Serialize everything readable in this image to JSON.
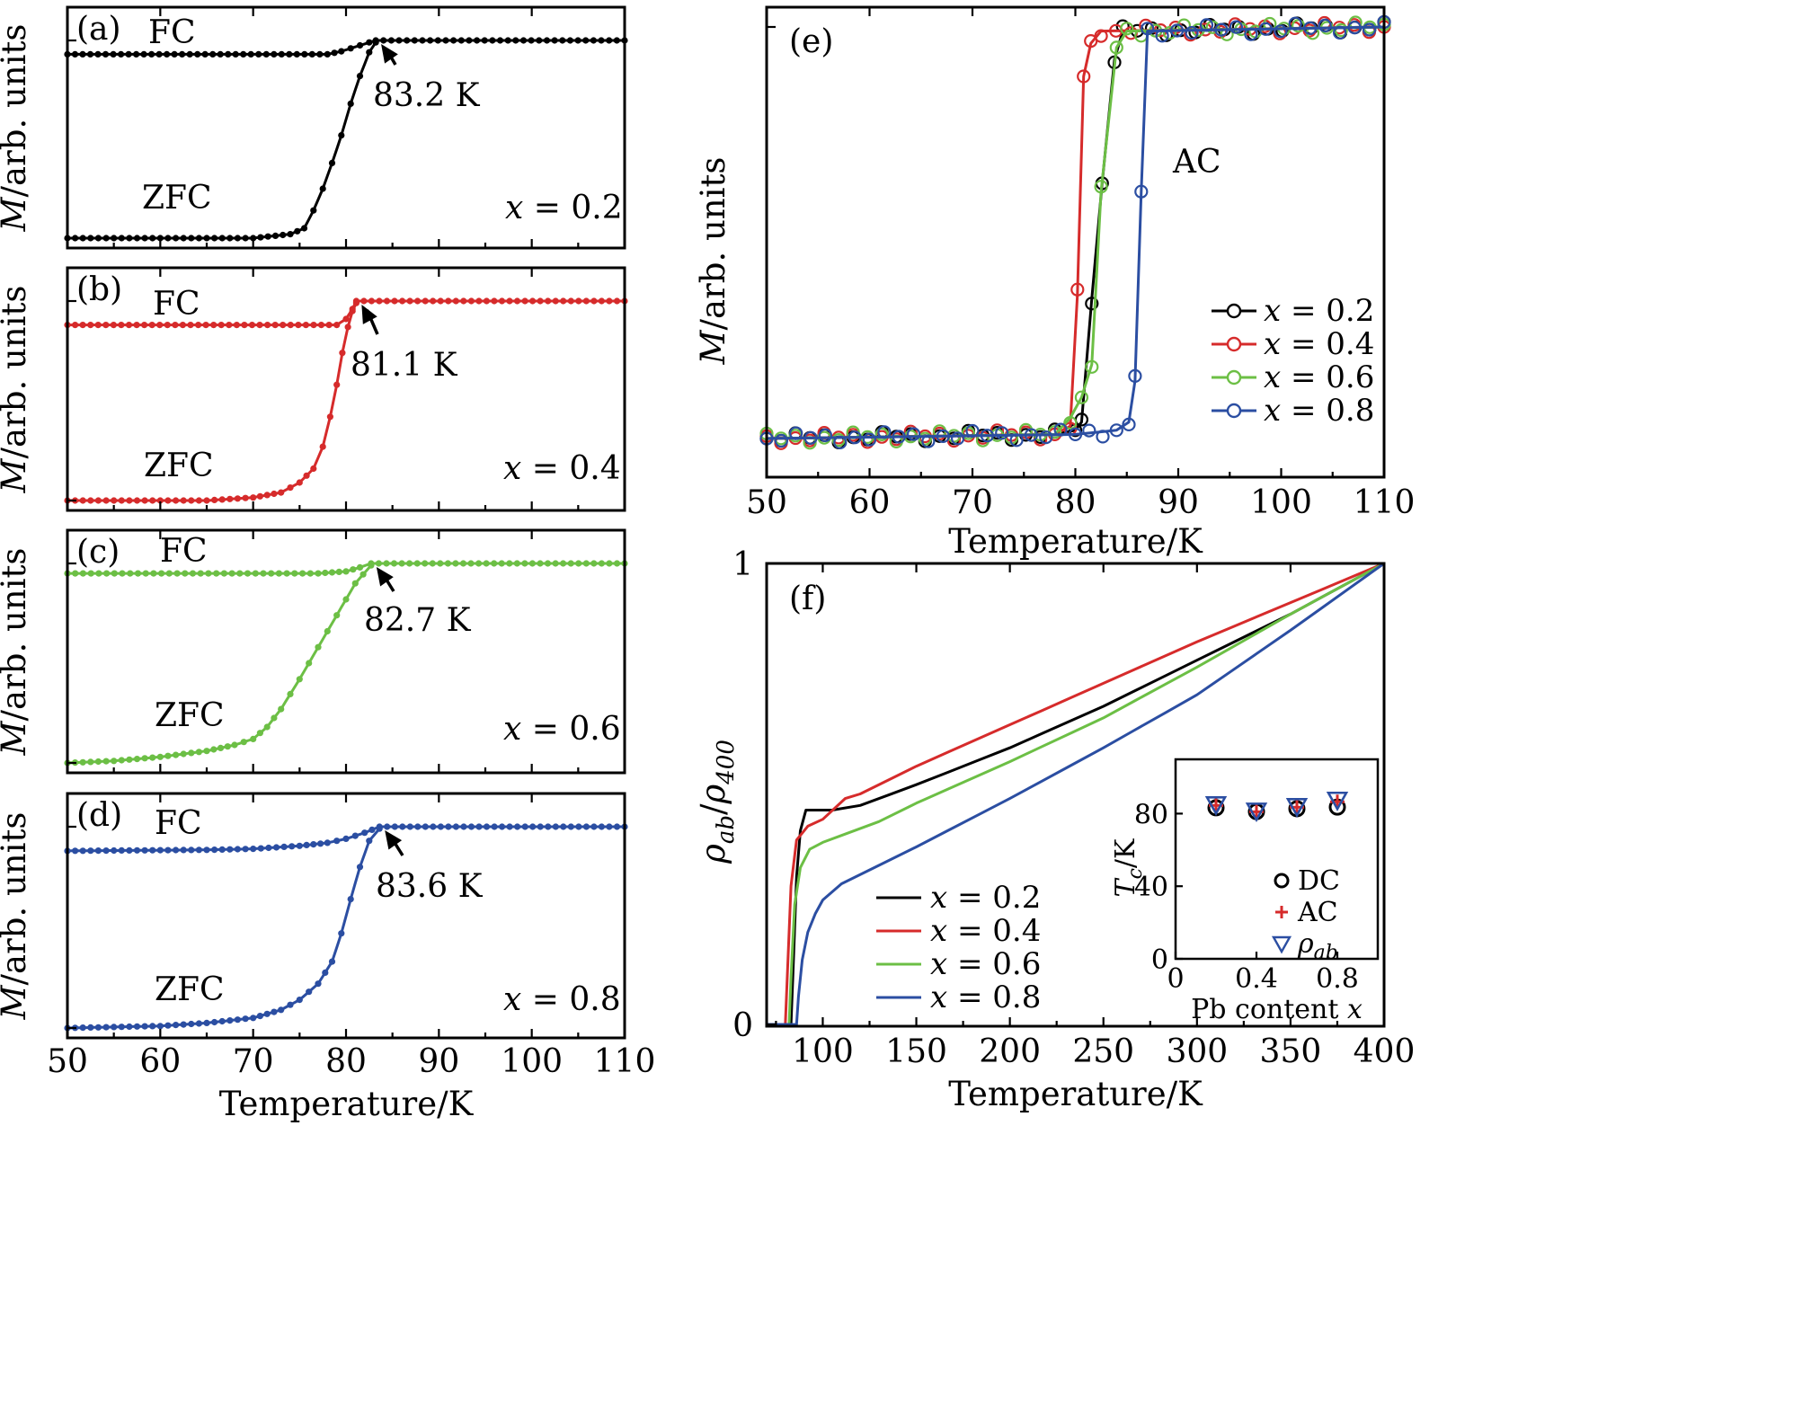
{
  "chart_data": [
    {
      "id": "a",
      "type": "line",
      "panel_label": "(a)",
      "xlim": [
        50,
        110
      ],
      "ylim": [
        0,
        1
      ],
      "xticks": [
        50,
        60,
        70,
        80,
        90,
        100,
        110
      ],
      "ylabel": "M/arb. units",
      "color": "#000000",
      "fc_label": "FC",
      "zfc_label": "ZFC",
      "composition": "x = 0.2",
      "tc_label": "83.2 K",
      "tc": 83.2,
      "fc": {
        "x": [
          50,
          78,
          79.5,
          80.5,
          81.5,
          82.5,
          83.2,
          110
        ],
        "y": [
          0.93,
          0.93,
          0.945,
          0.96,
          0.975,
          0.99,
          1.0,
          1.0
        ]
      },
      "zfc": {
        "x": [
          50,
          70,
          74,
          75.5,
          76.5,
          77.5,
          78.5,
          79.5,
          80.5,
          81.5,
          82.5,
          83.2
        ],
        "y": [
          0.0,
          0.0,
          0.02,
          0.05,
          0.14,
          0.25,
          0.38,
          0.52,
          0.68,
          0.82,
          0.94,
          0.99
        ]
      }
    },
    {
      "id": "b",
      "type": "line",
      "panel_label": "(b)",
      "xlim": [
        50,
        110
      ],
      "ylim": [
        0,
        1
      ],
      "xticks": [
        50,
        60,
        70,
        80,
        90,
        100,
        110
      ],
      "ylabel": "M/arb. units",
      "color": "#d62b2b",
      "fc_label": "FC",
      "zfc_label": "ZFC",
      "composition": "x = 0.4",
      "tc_label": "81.1 K",
      "tc": 81.1,
      "fc": {
        "x": [
          50,
          79,
          80,
          80.7,
          81.1,
          110
        ],
        "y": [
          0.88,
          0.88,
          0.91,
          0.96,
          1.0,
          1.0
        ]
      },
      "zfc": {
        "x": [
          50,
          65,
          70,
          73,
          75,
          76.5,
          77.5,
          78.3,
          79,
          79.6,
          80.2,
          80.7,
          81.1
        ],
        "y": [
          0.0,
          0.0,
          0.015,
          0.04,
          0.09,
          0.16,
          0.27,
          0.42,
          0.58,
          0.74,
          0.87,
          0.95,
          0.99
        ]
      }
    },
    {
      "id": "c",
      "type": "line",
      "panel_label": "(c)",
      "xlim": [
        50,
        110
      ],
      "ylim": [
        0,
        1
      ],
      "xticks": [
        50,
        60,
        70,
        80,
        90,
        100,
        110
      ],
      "ylabel": "M/arb. units",
      "color": "#6cbf45",
      "fc_label": "FC",
      "zfc_label": "ZFC",
      "composition": "x = 0.6",
      "tc_label": "82.7 K",
      "tc": 82.7,
      "fc": {
        "x": [
          50,
          77,
          80,
          81.5,
          82.7,
          110
        ],
        "y": [
          0.95,
          0.95,
          0.96,
          0.98,
          1.0,
          1.0
        ]
      },
      "zfc": {
        "x": [
          50,
          55,
          60,
          65,
          68,
          70,
          71.5,
          73,
          75,
          77,
          79,
          81,
          82.7
        ],
        "y": [
          0.0,
          0.01,
          0.03,
          0.06,
          0.09,
          0.12,
          0.18,
          0.27,
          0.42,
          0.58,
          0.74,
          0.9,
          0.99
        ]
      }
    },
    {
      "id": "d",
      "type": "line",
      "panel_label": "(d)",
      "xlim": [
        50,
        110
      ],
      "ylim": [
        0,
        1
      ],
      "xticks": [
        50,
        60,
        70,
        80,
        90,
        100,
        110
      ],
      "xticklabels": [
        "50",
        "60",
        "70",
        "80",
        "90",
        "100",
        "110"
      ],
      "xlabel": "Temperature/K",
      "ylabel": "M/arb. units",
      "color": "#2b4ea2",
      "fc_label": "FC",
      "zfc_label": "ZFC",
      "composition": "x = 0.8",
      "tc_label": "83.6 K",
      "tc": 83.6,
      "fc": {
        "x": [
          50,
          65,
          70,
          75,
          78,
          80,
          82,
          83.6,
          110
        ],
        "y": [
          0.88,
          0.885,
          0.89,
          0.905,
          0.92,
          0.94,
          0.97,
          1.0,
          1.0
        ]
      },
      "zfc": {
        "x": [
          50,
          60,
          65,
          70,
          73,
          75,
          77,
          78.5,
          79.5,
          80.5,
          81.5,
          82.5,
          83.6
        ],
        "y": [
          0.0,
          0.01,
          0.025,
          0.05,
          0.09,
          0.14,
          0.22,
          0.33,
          0.47,
          0.64,
          0.8,
          0.93,
          0.99
        ]
      }
    },
    {
      "id": "e",
      "type": "line",
      "panel_label": "(e)",
      "xlim": [
        50,
        110
      ],
      "ylim": [
        0,
        1
      ],
      "xticks": [
        50,
        60,
        70,
        80,
        90,
        100,
        110
      ],
      "xticklabels": [
        "50",
        "60",
        "70",
        "80",
        "90",
        "100",
        "110"
      ],
      "xlabel": "Temperature/K",
      "ylabel": "M/arb. units",
      "annotation": "AC",
      "series": [
        {
          "name": "x = 0.2",
          "color": "#000000",
          "x": [
            50,
            78,
            80,
            80.6,
            81.6,
            82.6,
            83.8,
            84.6,
            110
          ],
          "y": [
            0.0,
            0.01,
            0.02,
            0.04,
            0.34,
            0.62,
            0.92,
            0.99,
            1.0
          ]
        },
        {
          "name": "x = 0.4",
          "color": "#d62b2b",
          "x": [
            50,
            78,
            79.5,
            80.2,
            80.8,
            81.5,
            82.5,
            110
          ],
          "y": [
            0.0,
            0.01,
            0.03,
            0.35,
            0.88,
            0.96,
            0.99,
            1.0
          ]
        },
        {
          "name": "x = 0.6",
          "color": "#6cbf45",
          "x": [
            50,
            78,
            79.5,
            80.6,
            81.6,
            82.5,
            84,
            85,
            110
          ],
          "y": [
            0.0,
            0.01,
            0.05,
            0.1,
            0.18,
            0.6,
            0.95,
            0.99,
            1.0
          ]
        },
        {
          "name": "x = 0.8",
          "color": "#2b4ea2",
          "x": [
            50,
            80,
            84,
            85.2,
            85.8,
            86.4,
            87,
            110
          ],
          "y": [
            0.0,
            0.01,
            0.02,
            0.04,
            0.14,
            0.6,
            0.99,
            1.0
          ]
        }
      ]
    },
    {
      "id": "f",
      "type": "line",
      "panel_label": "(f)",
      "xlim": [
        70,
        400
      ],
      "ylim": [
        0,
        1
      ],
      "xticks": [
        100,
        150,
        200,
        250,
        300,
        350,
        400
      ],
      "xticklabels": [
        "100",
        "150",
        "200",
        "250",
        "300",
        "350",
        "400"
      ],
      "yticklabels": [
        "0",
        "1"
      ],
      "xlabel": "Temperature/K",
      "ylabel": "ρab/ρ400",
      "series": [
        {
          "name": "x = 0.2",
          "color": "#000000",
          "x": [
            70,
            83,
            84,
            86,
            88,
            91,
            95,
            105,
            120,
            150,
            200,
            250,
            300,
            350,
            400
          ],
          "y": [
            0,
            0,
            0.1,
            0.32,
            0.42,
            0.465,
            0.465,
            0.465,
            0.475,
            0.52,
            0.6,
            0.69,
            0.79,
            0.89,
            1.0
          ]
        },
        {
          "name": "x = 0.4",
          "color": "#d62b2b",
          "x": [
            70,
            80,
            81,
            83,
            86,
            92,
            100,
            112,
            120,
            150,
            200,
            250,
            300,
            350,
            400
          ],
          "y": [
            0,
            0,
            0.1,
            0.3,
            0.4,
            0.43,
            0.445,
            0.49,
            0.5,
            0.56,
            0.65,
            0.74,
            0.83,
            0.915,
            1.0
          ]
        },
        {
          "name": "x = 0.6",
          "color": "#6cbf45",
          "x": [
            70,
            82,
            83,
            85,
            88,
            93,
            100,
            110,
            130,
            150,
            200,
            250,
            300,
            350,
            400
          ],
          "y": [
            0,
            0,
            0.1,
            0.26,
            0.34,
            0.38,
            0.395,
            0.41,
            0.44,
            0.48,
            0.57,
            0.665,
            0.775,
            0.89,
            1.0
          ]
        },
        {
          "name": "x = 0.8",
          "color": "#2b4ea2",
          "x": [
            70,
            86,
            87,
            89,
            92,
            96,
            100,
            110,
            130,
            150,
            200,
            250,
            300,
            350,
            400
          ],
          "y": [
            0,
            0,
            0.06,
            0.14,
            0.2,
            0.24,
            0.27,
            0.305,
            0.345,
            0.385,
            0.49,
            0.6,
            0.715,
            0.855,
            1.0
          ]
        }
      ],
      "inset": {
        "type": "scatter",
        "xlabel": "Pb content x",
        "ylabel": "Tc/K",
        "xlim": [
          0,
          1
        ],
        "ylim": [
          0,
          100
        ],
        "xticks": [
          0,
          0.4,
          0.8
        ],
        "xticklabels": [
          "0",
          "0.4",
          "0.8"
        ],
        "yticks": [
          0,
          40,
          80
        ],
        "yticklabels": [
          "0",
          "40",
          "80"
        ],
        "series": [
          {
            "name": "DC",
            "marker": "circle",
            "color": "#000000",
            "x": [
              0.2,
              0.4,
              0.6,
              0.8
            ],
            "y": [
              83.2,
              81.1,
              82.7,
              83.6
            ]
          },
          {
            "name": "AC",
            "marker": "plus",
            "color": "#d62b2b",
            "x": [
              0.2,
              0.4,
              0.6,
              0.8
            ],
            "y": [
              84.5,
              81.0,
              83.5,
              86.5
            ]
          },
          {
            "name": "ρab",
            "marker": "triangle-down",
            "color": "#2b4ea2",
            "x": [
              0.2,
              0.4,
              0.6,
              0.8
            ],
            "y": [
              85.0,
              81.5,
              84.0,
              87.5
            ]
          }
        ]
      }
    }
  ]
}
